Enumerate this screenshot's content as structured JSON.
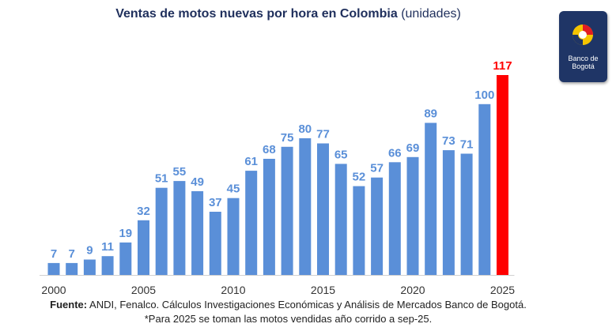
{
  "title_bold": "Ventas de motos nuevas por hora en Colombia",
  "title_unit": "(unidades)",
  "logo": {
    "line1": "Banco de",
    "line2": "Bogotá",
    "bg_color": "#1f3566"
  },
  "footer": {
    "source_label": "Fuente:",
    "source_text": "ANDI, Fenalco. Cálculos Investigaciones Económicas y Análisis de Mercados Banco de Bogotá.",
    "note": "*Para 2025 se toman las motos vendidas año corrido a sep-25."
  },
  "colors": {
    "bar": "#5a8fd8",
    "highlight": "#ff0000",
    "label": "#5a8fd8",
    "highlight_label": "#ff0000",
    "axis": "#d0d0d0"
  },
  "chart_data": {
    "type": "bar",
    "title": "Ventas de motos nuevas por hora en Colombia (unidades)",
    "categories": [
      "2000",
      "2001",
      "2002",
      "2003",
      "2004",
      "2005",
      "2006",
      "2007",
      "2008",
      "2009",
      "2010",
      "2011",
      "2012",
      "2013",
      "2014",
      "2015",
      "2016",
      "2017",
      "2018",
      "2019",
      "2020",
      "2021",
      "2022",
      "2023",
      "2024",
      "2025"
    ],
    "values": [
      7,
      7,
      9,
      11,
      19,
      32,
      51,
      55,
      49,
      37,
      45,
      61,
      68,
      75,
      80,
      77,
      65,
      52,
      57,
      66,
      69,
      89,
      73,
      71,
      100,
      117
    ],
    "highlight_index": 25,
    "x_tick_labels": [
      "2000",
      "2005",
      "2010",
      "2015",
      "2020",
      "2025"
    ],
    "ylim": [
      0,
      117
    ],
    "grid": false,
    "data_labels": true
  }
}
